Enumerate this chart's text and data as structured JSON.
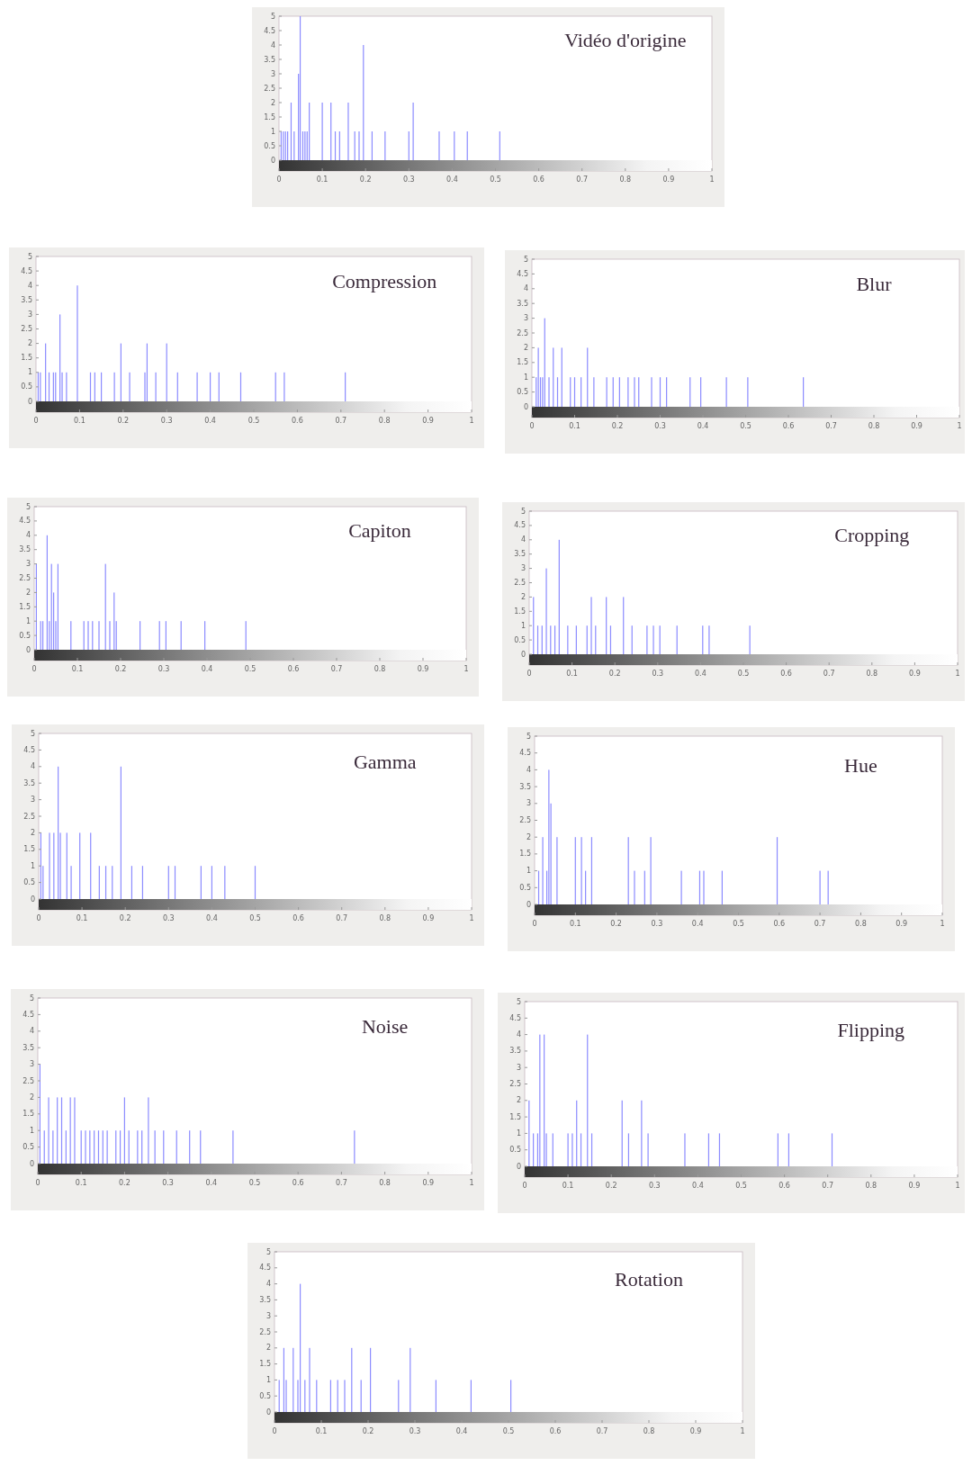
{
  "chart_data": [
    {
      "type": "bar",
      "title": "Vidéo d'origine",
      "color": "#8c8cff",
      "xlim": [
        0,
        1
      ],
      "ylim": [
        0,
        5
      ],
      "xticks": [
        0,
        0.1,
        0.2,
        0.3,
        0.4,
        0.5,
        0.6,
        0.7,
        0.8,
        0.9,
        1
      ],
      "yticks": [
        0,
        0.5,
        1,
        1.5,
        2,
        2.5,
        3,
        3.5,
        4,
        4.5,
        5
      ],
      "x": [
        0.005,
        0.01,
        0.015,
        0.02,
        0.028,
        0.035,
        0.045,
        0.049,
        0.055,
        0.06,
        0.065,
        0.07,
        0.1,
        0.12,
        0.13,
        0.14,
        0.16,
        0.175,
        0.185,
        0.195,
        0.215,
        0.245,
        0.3,
        0.31,
        0.37,
        0.405,
        0.435,
        0.51
      ],
      "values": [
        1,
        1,
        1,
        1,
        2,
        1,
        3,
        5,
        1,
        1,
        1,
        2,
        2,
        2,
        1,
        1,
        2,
        1,
        1,
        4,
        1,
        1,
        1,
        2,
        1,
        1,
        1,
        1
      ]
    },
    {
      "type": "bar",
      "title": "Compression",
      "color": "#8c8cff",
      "xlim": [
        0,
        1
      ],
      "ylim": [
        0,
        5
      ],
      "xticks": [
        0,
        0.1,
        0.2,
        0.3,
        0.4,
        0.5,
        0.6,
        0.7,
        0.8,
        0.9,
        1
      ],
      "yticks": [
        0,
        0.5,
        1,
        1.5,
        2,
        2.5,
        3,
        3.5,
        4,
        4.5,
        5
      ],
      "x": [
        0.005,
        0.01,
        0.022,
        0.03,
        0.04,
        0.045,
        0.055,
        0.06,
        0.07,
        0.095,
        0.125,
        0.135,
        0.15,
        0.18,
        0.195,
        0.215,
        0.25,
        0.255,
        0.275,
        0.3,
        0.325,
        0.37,
        0.4,
        0.42,
        0.47,
        0.55,
        0.57,
        0.71
      ],
      "values": [
        1,
        1,
        2,
        1,
        1,
        1,
        3,
        1,
        1,
        4,
        1,
        1,
        1,
        1,
        2,
        1,
        1,
        2,
        1,
        2,
        1,
        1,
        1,
        1,
        1,
        1,
        1,
        1
      ]
    },
    {
      "type": "bar",
      "title": "Blur",
      "color": "#8c8cff",
      "xlim": [
        0,
        1
      ],
      "ylim": [
        0,
        5
      ],
      "xticks": [
        0,
        0.1,
        0.2,
        0.3,
        0.4,
        0.5,
        0.6,
        0.7,
        0.8,
        0.9,
        1
      ],
      "yticks": [
        0,
        0.5,
        1,
        1.5,
        2,
        2.5,
        3,
        3.5,
        4,
        4.5,
        5
      ],
      "x": [
        0.01,
        0.015,
        0.02,
        0.025,
        0.03,
        0.04,
        0.05,
        0.06,
        0.07,
        0.09,
        0.1,
        0.115,
        0.13,
        0.145,
        0.175,
        0.19,
        0.205,
        0.225,
        0.24,
        0.25,
        0.28,
        0.3,
        0.315,
        0.37,
        0.395,
        0.455,
        0.505,
        0.635
      ],
      "values": [
        1,
        2,
        1,
        1,
        3,
        1,
        2,
        1,
        2,
        1,
        1,
        1,
        2,
        1,
        1,
        1,
        1,
        1,
        1,
        1,
        1,
        1,
        1,
        1,
        1,
        1,
        1,
        1
      ]
    },
    {
      "type": "bar",
      "title": "Capiton",
      "color": "#8c8cff",
      "xlim": [
        0,
        1
      ],
      "ylim": [
        0,
        5
      ],
      "xticks": [
        0,
        0.1,
        0.2,
        0.3,
        0.4,
        0.5,
        0.6,
        0.7,
        0.8,
        0.9,
        1
      ],
      "yticks": [
        0,
        0.5,
        1,
        1.5,
        2,
        2.5,
        3,
        3.5,
        4,
        4.5,
        5
      ],
      "x": [
        0.005,
        0.015,
        0.02,
        0.03,
        0.035,
        0.04,
        0.045,
        0.05,
        0.055,
        0.085,
        0.115,
        0.125,
        0.135,
        0.15,
        0.165,
        0.175,
        0.185,
        0.19,
        0.245,
        0.29,
        0.305,
        0.34,
        0.395,
        0.49
      ],
      "values": [
        3,
        1,
        1,
        4,
        1,
        3,
        2,
        1,
        3,
        1,
        1,
        1,
        1,
        1,
        3,
        1,
        2,
        1,
        1,
        1,
        1,
        1,
        1,
        1
      ]
    },
    {
      "type": "bar",
      "title": "Cropping",
      "color": "#8c8cff",
      "xlim": [
        0,
        1
      ],
      "ylim": [
        0,
        5
      ],
      "xticks": [
        0,
        0.1,
        0.2,
        0.3,
        0.4,
        0.5,
        0.6,
        0.7,
        0.8,
        0.9,
        1
      ],
      "yticks": [
        0,
        0.5,
        1,
        1.5,
        2,
        2.5,
        3,
        3.5,
        4,
        4.5,
        5
      ],
      "x": [
        0.01,
        0.02,
        0.03,
        0.04,
        0.05,
        0.06,
        0.07,
        0.09,
        0.11,
        0.135,
        0.145,
        0.155,
        0.18,
        0.19,
        0.22,
        0.24,
        0.275,
        0.29,
        0.305,
        0.345,
        0.405,
        0.42,
        0.515
      ],
      "values": [
        2,
        1,
        1,
        3,
        1,
        1,
        4,
        1,
        1,
        1,
        2,
        1,
        2,
        1,
        2,
        1,
        1,
        1,
        1,
        1,
        1,
        1,
        1
      ]
    },
    {
      "type": "bar",
      "title": "Gamma",
      "color": "#8c8cff",
      "xlim": [
        0,
        1
      ],
      "ylim": [
        0,
        5
      ],
      "xticks": [
        0,
        0.1,
        0.2,
        0.3,
        0.4,
        0.5,
        0.6,
        0.7,
        0.8,
        0.9,
        1
      ],
      "yticks": [
        0,
        0.5,
        1,
        1.5,
        2,
        2.5,
        3,
        3.5,
        4,
        4.5,
        5
      ],
      "x": [
        0.005,
        0.01,
        0.025,
        0.035,
        0.045,
        0.05,
        0.065,
        0.075,
        0.095,
        0.12,
        0.14,
        0.155,
        0.17,
        0.19,
        0.215,
        0.24,
        0.3,
        0.315,
        0.375,
        0.4,
        0.43,
        0.5
      ],
      "values": [
        2,
        1,
        2,
        2,
        4,
        2,
        2,
        1,
        2,
        2,
        1,
        1,
        1,
        4,
        1,
        1,
        1,
        1,
        1,
        1,
        1,
        1
      ]
    },
    {
      "type": "bar",
      "title": "Hue",
      "color": "#8c8cff",
      "xlim": [
        0,
        1
      ],
      "ylim": [
        0,
        5
      ],
      "xticks": [
        0,
        0.1,
        0.2,
        0.3,
        0.4,
        0.5,
        0.6,
        0.7,
        0.8,
        0.9,
        1
      ],
      "yticks": [
        0,
        0.5,
        1,
        1.5,
        2,
        2.5,
        3,
        3.5,
        4,
        4.5,
        5
      ],
      "x": [
        0.01,
        0.02,
        0.03,
        0.035,
        0.04,
        0.055,
        0.1,
        0.115,
        0.125,
        0.14,
        0.23,
        0.245,
        0.27,
        0.285,
        0.36,
        0.405,
        0.415,
        0.46,
        0.595,
        0.7,
        0.72
      ],
      "values": [
        1,
        2,
        1,
        4,
        3,
        2,
        2,
        2,
        1,
        2,
        2,
        1,
        1,
        2,
        1,
        1,
        1,
        1,
        2,
        1,
        1
      ]
    },
    {
      "type": "bar",
      "title": "Noise",
      "color": "#8c8cff",
      "xlim": [
        0,
        1
      ],
      "ylim": [
        0,
        5
      ],
      "xticks": [
        0,
        0.1,
        0.2,
        0.3,
        0.4,
        0.5,
        0.6,
        0.7,
        0.8,
        0.9,
        1
      ],
      "yticks": [
        0,
        0.5,
        1,
        1.5,
        2,
        2.5,
        3,
        3.5,
        4,
        4.5,
        5
      ],
      "x": [
        0.005,
        0.015,
        0.025,
        0.035,
        0.045,
        0.055,
        0.065,
        0.075,
        0.085,
        0.1,
        0.11,
        0.12,
        0.13,
        0.14,
        0.15,
        0.16,
        0.18,
        0.19,
        0.2,
        0.21,
        0.23,
        0.24,
        0.255,
        0.27,
        0.29,
        0.32,
        0.35,
        0.375,
        0.45,
        0.73
      ],
      "values": [
        3,
        1,
        2,
        1,
        2,
        2,
        1,
        2,
        2,
        1,
        1,
        1,
        1,
        1,
        1,
        1,
        1,
        1,
        2,
        1,
        1,
        1,
        2,
        1,
        1,
        1,
        1,
        1,
        1,
        1
      ]
    },
    {
      "type": "bar",
      "title": "Flipping",
      "color": "#8c8cff",
      "xlim": [
        0,
        1
      ],
      "ylim": [
        0,
        5
      ],
      "xticks": [
        0,
        0.1,
        0.2,
        0.3,
        0.4,
        0.5,
        0.6,
        0.7,
        0.8,
        0.9,
        1
      ],
      "yticks": [
        0,
        0.5,
        1,
        1.5,
        2,
        2.5,
        3,
        3.5,
        4,
        4.5,
        5
      ],
      "x": [
        0.01,
        0.02,
        0.03,
        0.035,
        0.045,
        0.05,
        0.065,
        0.1,
        0.11,
        0.12,
        0.13,
        0.145,
        0.155,
        0.225,
        0.24,
        0.27,
        0.285,
        0.37,
        0.425,
        0.45,
        0.585,
        0.61,
        0.71
      ],
      "values": [
        2,
        1,
        1,
        4,
        4,
        1,
        1,
        1,
        1,
        2,
        1,
        4,
        1,
        2,
        1,
        2,
        1,
        1,
        1,
        1,
        1,
        1,
        1
      ]
    },
    {
      "type": "bar",
      "title": "Rotation",
      "color": "#8c8cff",
      "xlim": [
        0,
        1
      ],
      "ylim": [
        0,
        5
      ],
      "xticks": [
        0,
        0.1,
        0.2,
        0.3,
        0.4,
        0.5,
        0.6,
        0.7,
        0.8,
        0.9,
        1
      ],
      "yticks": [
        0,
        0.5,
        1,
        1.5,
        2,
        2.5,
        3,
        3.5,
        4,
        4.5,
        5
      ],
      "x": [
        0.01,
        0.02,
        0.025,
        0.04,
        0.05,
        0.055,
        0.065,
        0.075,
        0.09,
        0.12,
        0.135,
        0.15,
        0.165,
        0.185,
        0.205,
        0.265,
        0.29,
        0.345,
        0.42,
        0.505
      ],
      "values": [
        1,
        2,
        1,
        2,
        1,
        4,
        1,
        2,
        1,
        1,
        1,
        1,
        2,
        1,
        2,
        1,
        2,
        1,
        1,
        1
      ]
    }
  ]
}
